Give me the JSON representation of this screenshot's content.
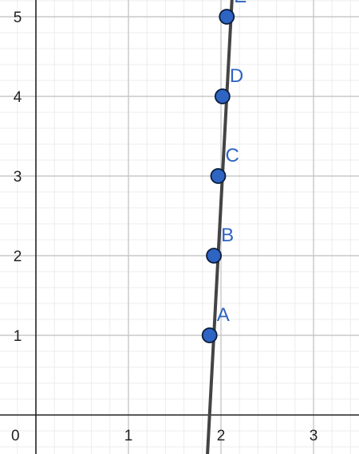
{
  "graph": {
    "origin_label": "0",
    "axes": {
      "x": {
        "range": [
          -0.4,
          3.5
        ],
        "ticks": [
          1,
          2,
          3
        ],
        "tick_labels": [
          "1",
          "2",
          "3"
        ]
      },
      "y": {
        "range": [
          -0.5,
          5.2
        ],
        "ticks": [
          1,
          2,
          3,
          4,
          5
        ],
        "tick_labels": [
          "1",
          "2",
          "3",
          "4",
          "5"
        ]
      },
      "minor_step": 0.2,
      "grid": true
    },
    "line": {
      "points": [
        [
          1.8536,
          -0.5
        ],
        [
          2.1179,
          5.2
        ]
      ],
      "color": "#444444"
    },
    "points": [
      {
        "label": "A",
        "x": 1.8768,
        "y": 1
      },
      {
        "label": "B",
        "x": 1.9232,
        "y": 2
      },
      {
        "label": "C",
        "x": 1.9696,
        "y": 3
      },
      {
        "label": "D",
        "x": 2.016,
        "y": 4
      },
      {
        "label": "E",
        "x": 2.0624,
        "y": 5
      }
    ],
    "colors": {
      "point_fill": "#2e64c2",
      "point_stroke": "#0b1c3a",
      "label": "#2e64c2",
      "axis": "#222222",
      "major_grid": "#c8c8c8",
      "minor_grid": "#ececec"
    }
  }
}
